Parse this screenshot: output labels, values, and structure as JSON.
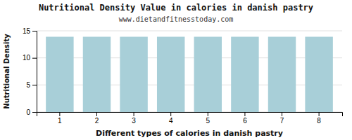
{
  "chart_data": {
    "type": "bar",
    "title": "Nutritional Density Value in calories in danish pastry",
    "subtitle": "www.dietandfitnesstoday.com",
    "xlabel": "Different types of calories in danish pastry",
    "ylabel": "Nutritional Density",
    "categories": [
      1,
      2,
      3,
      4,
      5,
      6,
      7,
      8
    ],
    "values": [
      13.9,
      13.9,
      13.9,
      13.9,
      13.9,
      13.9,
      13.9,
      13.9
    ],
    "color": "#a8cfd8",
    "ylim": [
      0,
      15
    ],
    "yticks": [
      0,
      5,
      10,
      15
    ],
    "grid": true
  }
}
